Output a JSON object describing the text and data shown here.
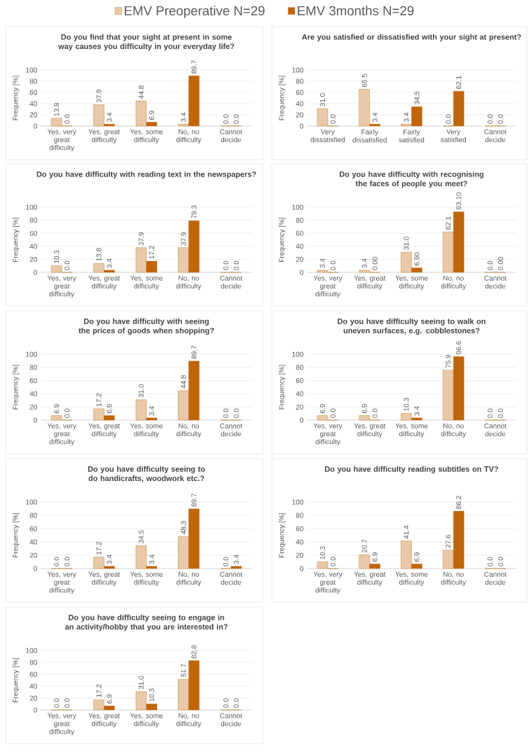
{
  "chart_data": [
    {
      "type": "bar",
      "title": "Do you find that your sight at present in some way causes you difficulty in your everyday life?",
      "ylabel": "Frequency [%]",
      "categories": [
        "Yes, very great difficulty",
        "Yes, great difficulty",
        "Yes, some difficulty",
        "No, no difficulty",
        "Cannot decide"
      ],
      "ylim": [
        0,
        100
      ],
      "yticks": [
        0,
        20,
        40,
        60,
        80,
        100
      ],
      "grid": "y",
      "legend": "top",
      "series": [
        {
          "name": "EMV Preoperative N=29",
          "color": "#c0650a",
          "values": [
            13.8,
            37.9,
            44.8,
            3.4,
            0.0
          ],
          "value_labels": [
            "13.8",
            "37.9",
            "44.8",
            "3.4",
            "0.0"
          ]
        },
        {
          "name": "EMV 3months N=29",
          "color": "#c0650a",
          "values": [
            0.0,
            3.4,
            6.9,
            89.7,
            0.0
          ],
          "value_labels": [
            "0.0",
            "3.4",
            "6.9",
            "89.7",
            "0.0"
          ]
        }
      ]
    },
    {
      "type": "bar",
      "title": "Are you satisfied or dissatisfied with your sight at present?",
      "ylabel": "Frequency [%]",
      "categories": [
        "Very dissatisfied",
        "Fairly dissatisfied",
        "Fairly satisfied",
        "Very satisfied",
        "Cannot decide"
      ],
      "ylim": [
        0,
        100
      ],
      "yticks": [
        0,
        20,
        40,
        60,
        80,
        100
      ],
      "grid": "y",
      "series": [
        {
          "color": "#c0650a",
          "values": [
            31.0,
            65.5,
            3.4,
            0.0,
            0.0
          ],
          "value_labels": [
            "31.0",
            "65.5",
            "3.4",
            "0.0",
            "0.0"
          ]
        },
        {
          "color": "#c0650a",
          "values": [
            0.0,
            3.4,
            34.5,
            62.1,
            0.0
          ],
          "value_labels": [
            "0.0",
            "3.4",
            "34.5",
            "62.1",
            "0.0"
          ]
        }
      ]
    },
    {
      "type": "bar",
      "title": "Do you have difficulty with reading text in the newspapers?",
      "ylabel": "Frequency [%]",
      "categories": [
        "Yes, very great difficulty",
        "Yes, great difficulty",
        "Yes, some difficulty",
        "No, no difficulty",
        "Cannot decide"
      ],
      "ylim": [
        0,
        100
      ],
      "yticks": [
        0,
        20,
        40,
        60,
        80,
        100
      ],
      "grid": "y",
      "series": [
        {
          "color": "#c0650a",
          "values": [
            10.3,
            13.8,
            37.9,
            37.9,
            0.0
          ],
          "value_labels": [
            "10.3",
            "13.8",
            "37.9",
            "37.9",
            "0.0"
          ]
        },
        {
          "color": "#c0650a",
          "values": [
            0.0,
            3.4,
            17.2,
            79.3,
            0.0
          ],
          "value_labels": [
            "0.0",
            "3.4",
            "17.2",
            "79.3",
            "0.0"
          ]
        }
      ]
    },
    {
      "type": "bar",
      "title": "Do you have difficulty with recognising the faces of people you  meet?",
      "ylabel": "Frequency [%]",
      "categories": [
        "Yes, very great difficulty",
        "Yes, great difficulty",
        "Yes, some difficulty",
        "No, no difficulty",
        "Cannot decide"
      ],
      "ylim": [
        0,
        100
      ],
      "yticks": [
        0,
        20,
        40,
        60,
        80,
        100
      ],
      "grid": "y",
      "series": [
        {
          "color": "#c0650a",
          "values": [
            3.4,
            3.4,
            31.0,
            62.1,
            0.0
          ],
          "value_labels": [
            "3.4",
            "3.4",
            "31.0",
            "62.1",
            "0.0"
          ]
        },
        {
          "color": "#c0650a",
          "values": [
            0.0,
            0.0,
            6.9,
            93.1,
            0.0
          ],
          "value_labels": [
            "0.0",
            "0.00",
            "6.90",
            "93.10",
            "0.00"
          ]
        }
      ]
    },
    {
      "type": "bar",
      "title": "Do you have difficulty with seeing the prices of goods when shopping?",
      "ylabel": "Frequency [%]",
      "categories": [
        "Yes, very great difficulty",
        "Yes, great difficulty",
        "Yes, some difficulty",
        "No, no difficulty",
        "Cannot decide"
      ],
      "ylim": [
        0,
        100
      ],
      "yticks": [
        0,
        20,
        40,
        60,
        80,
        100
      ],
      "grid": "y",
      "series": [
        {
          "color": "#c0650a",
          "values": [
            6.9,
            17.2,
            31.0,
            44.8,
            0.0
          ],
          "value_labels": [
            "6.9",
            "17.2",
            "31.0",
            "44.8",
            "0.0"
          ]
        },
        {
          "color": "#c0650a",
          "values": [
            0.0,
            6.9,
            3.4,
            89.7,
            0.0
          ],
          "value_labels": [
            "0.0",
            "6.9",
            "3.4",
            "89.7",
            "0.0"
          ]
        }
      ]
    },
    {
      "type": "bar",
      "title": "Do you have difficulty seeing to walk on uneven surfaces, e.g. cobblestones?",
      "ylabel": "Frequency [%]",
      "categories": [
        "Yes, very great difficulty",
        "Yes, great difficulty",
        "Yes, some difficulty",
        "No, no difficulty",
        "Cannot decide"
      ],
      "ylim": [
        0,
        100
      ],
      "yticks": [
        0,
        20,
        40,
        60,
        80,
        100
      ],
      "grid": "y",
      "series": [
        {
          "color": "#c0650a",
          "values": [
            6.9,
            6.9,
            10.3,
            75.9,
            0.0
          ],
          "value_labels": [
            "6.9",
            "6.9",
            "10.3",
            "75.9",
            "0.0"
          ]
        },
        {
          "color": "#c0650a",
          "values": [
            0.0,
            0.0,
            3.4,
            96.6,
            0.0
          ],
          "value_labels": [
            "0.0",
            "0.0",
            "3.4",
            "96.6",
            "0.0"
          ]
        }
      ]
    },
    {
      "type": "bar",
      "title": "Do you have difficulty seeing to do handicrafts, woodwork etc.?",
      "ylabel": "Frequency [%]",
      "categories": [
        "Yes, very great difficulty",
        "Yes, great difficulty",
        "Yes, some difficulty",
        "No, no difficulty",
        "Cannot decide"
      ],
      "ylim": [
        0,
        100
      ],
      "yticks": [
        0,
        20,
        40,
        60,
        80,
        100
      ],
      "grid": "y",
      "series": [
        {
          "color": "#c0650a",
          "values": [
            0.0,
            17.2,
            34.5,
            48.3,
            0.0
          ],
          "value_labels": [
            "0.0",
            "17.2",
            "34.5",
            "48.3",
            "0.0"
          ]
        },
        {
          "color": "#c0650a",
          "values": [
            0.0,
            3.4,
            3.4,
            89.7,
            3.4
          ],
          "value_labels": [
            "0.0",
            "3.4",
            "3.4",
            "89.7",
            "3.4"
          ]
        }
      ]
    },
    {
      "type": "bar",
      "title": "Do you have difficulty reading subtitles on TV?",
      "ylabel": "Frequency [%]",
      "categories": [
        "Yes, very great difficulty",
        "Yes, great difficulty",
        "Yes, some difficulty",
        "No, no difficulty",
        "Cannot decide"
      ],
      "ylim": [
        0,
        100
      ],
      "yticks": [
        0,
        20,
        40,
        60,
        80,
        100
      ],
      "grid": "y",
      "series": [
        {
          "color": "#c0650a",
          "values": [
            10.3,
            20.7,
            41.4,
            27.6,
            0.0
          ],
          "value_labels": [
            "10.3",
            "20.7",
            "41.4",
            "27.6",
            "0.0"
          ]
        },
        {
          "color": "#c0650a",
          "values": [
            0.0,
            6.9,
            6.9,
            86.2,
            0.0
          ],
          "value_labels": [
            "0.0",
            "6.9",
            "6.9",
            "86.2",
            "0.0"
          ]
        }
      ]
    },
    {
      "type": "bar",
      "title": "Do you have difficulty seeing to engage in an activity/hobby that you are interested in?",
      "ylabel": "Frequency [%]",
      "categories": [
        "Yes, very great difficulty",
        "Yes, great difficulty",
        "Yes, some difficulty",
        "No, no difficulty",
        "Cannot decide"
      ],
      "ylim": [
        0,
        100
      ],
      "yticks": [
        0,
        20,
        40,
        60,
        80,
        100
      ],
      "grid": "y",
      "series": [
        {
          "color": "#c0650a",
          "values": [
            0.0,
            17.2,
            31.0,
            51.7,
            0.0
          ],
          "value_labels": [
            "0.0",
            "17.2",
            "31.0",
            "51.7",
            "0.0"
          ]
        },
        {
          "color": "#c0650a",
          "values": [
            0.0,
            6.9,
            10.3,
            82.8,
            0.0
          ],
          "value_labels": [
            "0.0",
            "6.9",
            "10.3",
            "82.8",
            "0.0"
          ]
        }
      ]
    }
  ]
}
